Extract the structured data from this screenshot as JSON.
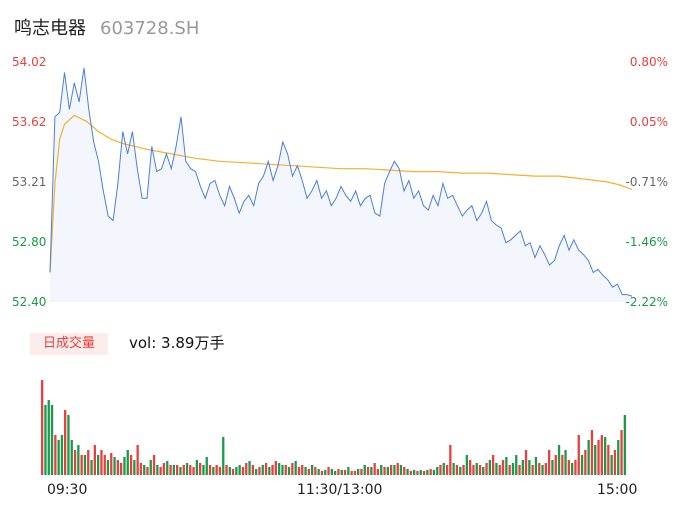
{
  "header": {
    "name": "鸣志电器",
    "code": "603728.SH"
  },
  "volume_panel": {
    "badge": "日成交量",
    "vol_text": "vol: 3.89万手"
  },
  "colors": {
    "price_line": "#4a7fe0",
    "avg_line": "#f5b02e",
    "fill": "#f3f6fc",
    "up": "#e8403c",
    "down": "#1a9a4a"
  },
  "chart_data": {
    "type": "line",
    "price_axis": {
      "left_ticks": [
        "54.02",
        "53.62",
        "53.21",
        "52.80",
        "52.40"
      ],
      "right_ticks": [
        "0.80%",
        "0.05%",
        "-0.71%",
        "-1.46%",
        "-2.22%"
      ],
      "ylim": [
        52.4,
        54.02
      ]
    },
    "time_ticks": [
      "09:30",
      "11:30/13:00",
      "15:00"
    ],
    "price_series": {
      "name": "price",
      "x": [
        0,
        2,
        4,
        6,
        8,
        10,
        12,
        14,
        16,
        18,
        20,
        22,
        24,
        26,
        28,
        30,
        32,
        34,
        36,
        38,
        40,
        42,
        44,
        46,
        48,
        50,
        52,
        54,
        56,
        58,
        60,
        62,
        64,
        66,
        68,
        70,
        72,
        74,
        76,
        78,
        80,
        82,
        84,
        86,
        88,
        90,
        92,
        94,
        96,
        98,
        100,
        102,
        104,
        106,
        108,
        110,
        112,
        114,
        116,
        118,
        120,
        122,
        124,
        126,
        128,
        130,
        132,
        134,
        136,
        138,
        140,
        142,
        144,
        146,
        148,
        150,
        152,
        154,
        156,
        158,
        160,
        162,
        164,
        166,
        168,
        170,
        172,
        174,
        176,
        178,
        180,
        182,
        184,
        186,
        188,
        190,
        192,
        194,
        196,
        198,
        200,
        202,
        204,
        206,
        208,
        210,
        212,
        214,
        216,
        218,
        220,
        222,
        224,
        226,
        228,
        230,
        232,
        234,
        236,
        238,
        240
      ],
      "values": [
        52.6,
        53.65,
        53.68,
        53.95,
        53.7,
        53.88,
        53.75,
        53.98,
        53.7,
        53.48,
        53.35,
        53.15,
        52.98,
        52.95,
        53.2,
        53.55,
        53.4,
        53.55,
        53.3,
        53.1,
        53.1,
        53.45,
        53.28,
        53.3,
        53.4,
        53.3,
        53.45,
        53.65,
        53.35,
        53.3,
        53.28,
        53.18,
        53.1,
        53.2,
        53.22,
        53.12,
        53.05,
        53.18,
        53.1,
        53.0,
        53.08,
        53.12,
        53.05,
        53.2,
        53.25,
        53.35,
        53.22,
        53.32,
        53.48,
        53.4,
        53.25,
        53.32,
        53.22,
        53.1,
        53.15,
        53.22,
        53.1,
        53.15,
        53.05,
        53.1,
        53.18,
        53.12,
        53.08,
        53.15,
        53.05,
        53.1,
        53.12,
        53.0,
        52.98,
        53.2,
        53.28,
        53.35,
        53.3,
        53.15,
        53.22,
        53.1,
        53.15,
        53.05,
        53.02,
        53.12,
        53.05,
        53.2,
        53.1,
        53.12,
        53.05,
        52.98,
        53.02,
        53.05,
        52.95,
        53.0,
        53.08,
        52.95,
        52.92,
        52.9,
        52.8,
        52.82,
        52.85,
        52.88,
        52.78,
        52.8,
        52.7,
        52.78,
        52.72,
        52.65,
        52.68,
        52.78,
        52.85,
        52.75,
        52.82,
        52.75,
        52.72,
        52.68,
        52.6,
        52.62,
        52.58,
        52.55,
        52.5,
        52.52,
        52.45,
        52.45,
        52.44
      ]
    },
    "average_series": {
      "name": "average",
      "x": [
        0,
        2,
        4,
        6,
        8,
        10,
        15,
        20,
        25,
        30,
        40,
        50,
        60,
        70,
        80,
        90,
        100,
        110,
        120,
        130,
        140,
        150,
        160,
        170,
        180,
        190,
        200,
        210,
        220,
        230,
        235,
        240
      ],
      "values": [
        52.6,
        53.2,
        53.5,
        53.6,
        53.63,
        53.66,
        53.62,
        53.55,
        53.5,
        53.47,
        53.43,
        53.4,
        53.37,
        53.35,
        53.34,
        53.33,
        53.32,
        53.31,
        53.3,
        53.3,
        53.29,
        53.28,
        53.28,
        53.27,
        53.27,
        53.26,
        53.25,
        53.25,
        53.23,
        53.21,
        53.19,
        53.16
      ]
    },
    "volume_series": {
      "name": "vol",
      "values": [
        95,
        70,
        75,
        70,
        40,
        35,
        40,
        65,
        60,
        35,
        25,
        30,
        20,
        20,
        25,
        15,
        30,
        20,
        25,
        20,
        15,
        22,
        18,
        15,
        12,
        18,
        25,
        20,
        15,
        30,
        12,
        10,
        8,
        15,
        20,
        10,
        8,
        12,
        14,
        10,
        10,
        10,
        8,
        10,
        12,
        10,
        8,
        15,
        12,
        10,
        18,
        10,
        8,
        10,
        8,
        38,
        10,
        8,
        6,
        8,
        10,
        8,
        12,
        14,
        10,
        6,
        8,
        10,
        12,
        8,
        10,
        14,
        12,
        10,
        10,
        8,
        12,
        14,
        8,
        10,
        8,
        6,
        10,
        8,
        6,
        4,
        5,
        8,
        6,
        4,
        6,
        5,
        5,
        8,
        4,
        4,
        6,
        6,
        10,
        8,
        8,
        12,
        6,
        10,
        8,
        8,
        10,
        10,
        12,
        10,
        8,
        6,
        4,
        5,
        4,
        5,
        4,
        5,
        6,
        5,
        8,
        10,
        12,
        10,
        30,
        12,
        10,
        8,
        10,
        20,
        15,
        10,
        12,
        10,
        8,
        12,
        15,
        20,
        12,
        10,
        15,
        18,
        10,
        12,
        20,
        10,
        15,
        25,
        15,
        10,
        18,
        12,
        10,
        12,
        25,
        15,
        20,
        30,
        20,
        25,
        15,
        12,
        15,
        40,
        20,
        25,
        35,
        45,
        30,
        35,
        40,
        38,
        30,
        20,
        25,
        35,
        45,
        60
      ],
      "colors_up": [
        1,
        0,
        0,
        0,
        1,
        0,
        0,
        1,
        0,
        0,
        1,
        0,
        1,
        0,
        1,
        0,
        1,
        0,
        1,
        1,
        0,
        1,
        0,
        1,
        1,
        0,
        0,
        1,
        0,
        1,
        1,
        0,
        1,
        0,
        1,
        0,
        1,
        1,
        0,
        1,
        0,
        1,
        0,
        1,
        0,
        1,
        1,
        0,
        1,
        0,
        0,
        1,
        0,
        1,
        1,
        0,
        1,
        0,
        1,
        0,
        0,
        1,
        1,
        0,
        1,
        0,
        1,
        0,
        1,
        0,
        1,
        1,
        0,
        0,
        1,
        0,
        1,
        0,
        1,
        1,
        0,
        1,
        0,
        1,
        0,
        1,
        0,
        1,
        0,
        0,
        1,
        0,
        1,
        0,
        1,
        1,
        0,
        1,
        0,
        1,
        0,
        1,
        1,
        0,
        1,
        0,
        1,
        0,
        1,
        0,
        1,
        0,
        1,
        0,
        1,
        0,
        1,
        0,
        1,
        0,
        0,
        1,
        0,
        1,
        1,
        0,
        1,
        0,
        1,
        0,
        1,
        1,
        0,
        1,
        0,
        1,
        0,
        1,
        0,
        1,
        1,
        0,
        1,
        0,
        0,
        1,
        0,
        1,
        0,
        1,
        0,
        1,
        0,
        1,
        1,
        0,
        1,
        0,
        1,
        0,
        1,
        0,
        1,
        1,
        0,
        1,
        0,
        1,
        0,
        1,
        1,
        0,
        1,
        0,
        1,
        0,
        1,
        0
      ]
    }
  }
}
